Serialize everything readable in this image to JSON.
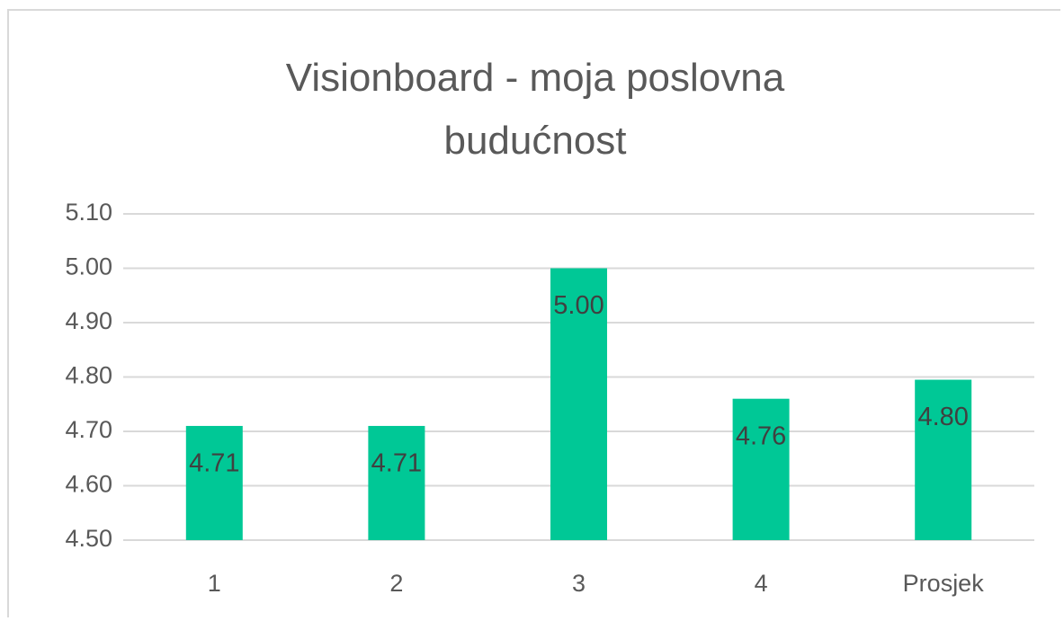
{
  "chart_data": {
    "type": "bar",
    "title": "Visionboard - moja poslovna budućnost",
    "categories": [
      "1",
      "2",
      "3",
      "4",
      "Prosjek"
    ],
    "values": [
      4.71,
      4.71,
      5,
      4.76,
      4.795
    ],
    "value_labels": [
      "4.71",
      "4.71",
      "5.00",
      "4.76",
      "4.80"
    ],
    "color": "#00c896",
    "ylim": [
      4.5,
      5.1
    ],
    "yticks": [
      {
        "value": 4.5,
        "label": "4.50"
      },
      {
        "value": 4.6,
        "label": "4.60"
      },
      {
        "value": 4.7,
        "label": "4.70"
      },
      {
        "value": 4.8,
        "label": "4.80"
      },
      {
        "value": 4.9,
        "label": "4.90"
      },
      {
        "value": 5,
        "label": "5.00"
      },
      {
        "value": 5.1,
        "label": "5.10"
      }
    ],
    "grid": true
  }
}
